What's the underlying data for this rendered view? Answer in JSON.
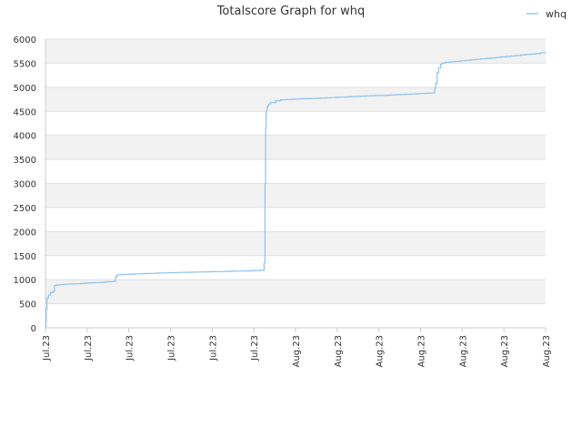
{
  "chart_data": {
    "type": "line",
    "title": "Totalscore Graph for whq",
    "xlabel": "",
    "ylabel": "",
    "ylim": [
      0,
      6000
    ],
    "y_ticks": [
      0,
      500,
      1000,
      1500,
      2000,
      2500,
      3000,
      3500,
      4000,
      4500,
      5000,
      5500,
      6000
    ],
    "x_tick_labels": [
      "Jul.23",
      "Jul.23",
      "Jul.23",
      "Jul.23",
      "Jul.23",
      "Jul.23",
      "Aug.23",
      "Aug.23",
      "Aug.23",
      "Aug.23",
      "Aug.23",
      "Aug.23",
      "Aug.23"
    ],
    "grid": "horizontal alternating bands",
    "legend_position": "top-right",
    "colors": {
      "line": "#90c2ee",
      "band": "#f2f2f2",
      "grid": "#e0e0e0",
      "axis": "#cccccc"
    },
    "series": [
      {
        "name": "whq",
        "x": [
          0.0,
          0.1,
          0.15,
          0.3,
          0.6,
          1.0,
          1.5,
          1.8,
          2.2,
          2.6,
          3.0,
          3.6,
          4.0,
          5.0,
          6.0,
          7.0,
          8.0,
          9.0,
          10.0,
          11.0,
          12.0,
          13.0,
          13.6,
          14.0,
          14.2,
          14.4,
          15.0,
          16.0,
          17.0,
          18.0,
          19.0,
          20.0,
          21.0,
          22.0,
          23.0,
          24.0,
          25.0,
          26.0,
          27.0,
          28.0,
          29.0,
          30.0,
          31.0,
          32.0,
          33.0,
          34.0,
          35.0,
          36.0,
          37.0,
          38.0,
          39.0,
          40.0,
          41.0,
          42.0,
          43.0,
          43.7,
          43.9,
          44.0,
          44.1,
          44.2,
          44.3,
          44.4,
          44.6,
          45.0,
          46.0,
          47.0,
          48.0,
          49.0,
          50.0,
          51.0,
          52.0,
          53.0,
          54.0,
          55.0,
          56.0,
          57.0,
          58.0,
          59.0,
          60.0,
          61.0,
          62.0,
          63.0,
          64.0,
          65.0,
          66.0,
          67.0,
          68.0,
          69.0,
          70.0,
          71.0,
          72.0,
          73.0,
          74.0,
          75.0,
          76.0,
          77.0,
          77.7,
          77.8,
          78.0,
          78.3,
          78.6,
          79.0,
          79.3,
          79.8,
          80.0,
          81.0,
          82.0,
          83.0,
          84.0,
          85.0,
          86.0,
          87.0,
          88.0,
          89.0,
          90.0,
          91.0,
          92.0,
          93.0,
          94.0,
          95.0,
          96.0,
          97.0,
          98.0,
          99.0,
          100.0
        ],
        "values": [
          0,
          130,
          380,
          620,
          680,
          730,
          760,
          880,
          890,
          890,
          895,
          900,
          905,
          910,
          915,
          920,
          930,
          935,
          940,
          945,
          955,
          960,
          965,
          1050,
          1080,
          1100,
          1105,
          1110,
          1115,
          1120,
          1125,
          1128,
          1130,
          1135,
          1140,
          1142,
          1145,
          1148,
          1150,
          1152,
          1155,
          1158,
          1160,
          1162,
          1165,
          1168,
          1170,
          1172,
          1175,
          1178,
          1180,
          1182,
          1185,
          1190,
          1195,
          1350,
          3000,
          4150,
          4450,
          4530,
          4580,
          4610,
          4650,
          4680,
          4720,
          4740,
          4745,
          4750,
          4755,
          4760,
          4762,
          4765,
          4770,
          4775,
          4780,
          4785,
          4790,
          4795,
          4800,
          4805,
          4810,
          4815,
          4820,
          4825,
          4828,
          4830,
          4835,
          4840,
          4845,
          4850,
          4855,
          4860,
          4865,
          4870,
          4875,
          4880,
          4890,
          4980,
          5080,
          5300,
          5400,
          5480,
          5500,
          5510,
          5520,
          5530,
          5540,
          5550,
          5560,
          5570,
          5580,
          5590,
          5600,
          5610,
          5620,
          5630,
          5640,
          5650,
          5660,
          5670,
          5680,
          5690,
          5700,
          5720,
          5730
        ]
      }
    ]
  }
}
